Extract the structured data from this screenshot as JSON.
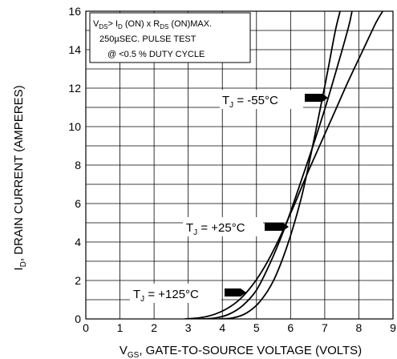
{
  "chart_data": {
    "type": "line",
    "xlabel": "V",
    "xlabel_sub": "GS",
    "xlabel_rest": ", GATE-TO-SOURCE VOLTAGE (VOLTS)",
    "ylabel": "I",
    "ylabel_sub": "D",
    "ylabel_rest": ", DRAIN CURRENT (AMPERES)",
    "xlim": [
      0,
      9
    ],
    "ylim": [
      0,
      16
    ],
    "xticks": [
      "0",
      "1",
      "2",
      "3",
      "4",
      "5",
      "6",
      "7",
      "8",
      "9"
    ],
    "yticks": [
      "0",
      "2",
      "4",
      "6",
      "8",
      "10",
      "12",
      "14",
      "16"
    ],
    "grid": true,
    "annotation": {
      "line1_pre": "V",
      "line1_sub1": "DS",
      "line1_mid1": "> I",
      "line1_sub2": "D",
      "line1_mid2": " (ON)  x   R",
      "line1_sub3": "DS",
      "line1_end": " (ON)MAX.",
      "line2": "250µSEC.  PULSE  TEST",
      "line3": "@  <0.5 %  DUTY  CYCLE"
    },
    "series": [
      {
        "name_main": "T",
        "name_sub": "J",
        "name_rest": " = -55°C",
        "x": [
          2.9,
          3.3,
          3.7,
          4.1,
          4.5,
          4.9,
          5.3,
          5.7,
          6.1,
          6.5,
          6.9,
          7.3,
          7.7,
          8.1,
          8.5,
          8.7
        ],
        "y": [
          0,
          0.05,
          0.2,
          0.5,
          1.0,
          1.8,
          2.9,
          4.3,
          5.9,
          7.6,
          9.2,
          10.8,
          12.4,
          13.9,
          15.4,
          16
        ]
      },
      {
        "name_main": "T",
        "name_sub": "J",
        "name_rest": " = +25°C",
        "x": [
          3.4,
          3.8,
          4.2,
          4.6,
          5.0,
          5.4,
          5.8,
          6.2,
          6.6,
          7.0,
          7.4,
          7.7,
          7.8
        ],
        "y": [
          0,
          0.05,
          0.25,
          0.7,
          1.5,
          2.9,
          4.6,
          6.6,
          8.7,
          10.9,
          13.3,
          15.2,
          16
        ]
      },
      {
        "name_main": "T",
        "name_sub": "J",
        "name_rest": " = +125°C",
        "x": [
          3.9,
          4.3,
          4.7,
          5.1,
          5.5,
          5.9,
          6.3,
          6.6,
          6.9,
          7.1,
          7.3,
          7.45
        ],
        "y": [
          0,
          0.05,
          0.3,
          0.9,
          2.0,
          3.8,
          6.2,
          8.6,
          11.2,
          13.0,
          14.9,
          16
        ]
      }
    ],
    "colors": {
      "line": "#000000",
      "grid": "#000000",
      "background": "#ffffff"
    }
  }
}
